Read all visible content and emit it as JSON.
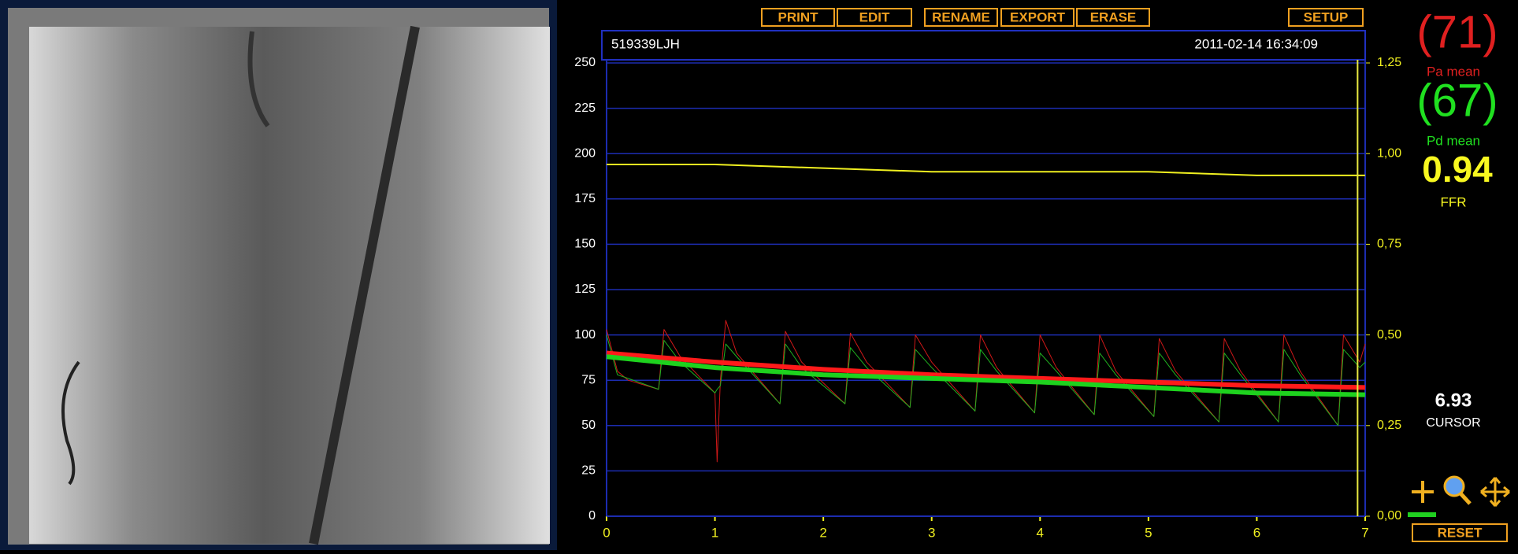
{
  "toolbar": {
    "buttons": [
      "PRINT",
      "EDIT",
      "RENAME",
      "EXPORT",
      "ERASE",
      "SETUP"
    ]
  },
  "header": {
    "patient_id": "519339LJH",
    "timestamp": "2011-02-14 16:34:09"
  },
  "readouts": {
    "pa_value": "(71)",
    "pa_label": "Pa mean",
    "pd_value": "(67)",
    "pd_label": "Pd mean",
    "ffr_value": "0.94",
    "ffr_label": "FFR",
    "cursor_label": "CURSOR",
    "reset": "RESET"
  },
  "chart_data": {
    "type": "line",
    "xlim": [
      0,
      7
    ],
    "xticks": [
      0,
      1,
      2,
      3,
      4,
      5,
      6,
      7
    ],
    "ylim": [
      0,
      250
    ],
    "yticks": [
      0,
      25,
      50,
      75,
      100,
      125,
      150,
      175,
      200,
      225,
      250
    ],
    "y2lim": [
      0,
      1.25
    ],
    "y2ticks": [
      {
        "value": 0,
        "label": "0,00"
      },
      {
        "value": 0.25,
        "label": "0,25"
      },
      {
        "value": 0.5,
        "label": "0,50"
      },
      {
        "value": 0.75,
        "label": "0,75"
      },
      {
        "value": 1,
        "label": "1,00"
      },
      {
        "value": 1.25,
        "label": "1,25"
      }
    ],
    "grid": true,
    "cursor": 6.93,
    "cursor_color": "#e8e840",
    "series": [
      {
        "color": "#d01818",
        "width": 1,
        "x": [
          0,
          0.1,
          0.2,
          0.48,
          0.53,
          0.68,
          1.0,
          1.02,
          1.05,
          1.1,
          1.2,
          1.6,
          1.65,
          1.8,
          2.2,
          2.25,
          2.4,
          2.8,
          2.85,
          3.0,
          3.4,
          3.45,
          3.6,
          3.95,
          4.0,
          4.15,
          4.5,
          4.55,
          4.7,
          5.05,
          5.1,
          5.25,
          5.65,
          5.7,
          5.85,
          6.2,
          6.25,
          6.4,
          6.75,
          6.8,
          6.95,
          7.0
        ],
        "values": [
          103,
          80,
          75,
          70,
          103,
          88,
          68,
          30,
          75,
          108,
          90,
          62,
          102,
          85,
          62,
          101,
          85,
          60,
          100,
          85,
          58,
          100,
          82,
          57,
          100,
          82,
          56,
          100,
          80,
          55,
          98,
          80,
          52,
          98,
          80,
          52,
          100,
          80,
          50,
          100,
          85,
          95
        ]
      },
      {
        "color": "#20b020",
        "width": 1,
        "x": [
          0,
          0.1,
          0.2,
          0.48,
          0.53,
          0.68,
          1.0,
          1.02,
          1.05,
          1.1,
          1.2,
          1.6,
          1.65,
          1.8,
          2.2,
          2.25,
          2.4,
          2.8,
          2.85,
          3.0,
          3.4,
          3.45,
          3.6,
          3.95,
          4.0,
          4.15,
          4.5,
          4.55,
          4.7,
          5.05,
          5.1,
          5.25,
          5.65,
          5.7,
          5.85,
          6.2,
          6.25,
          6.4,
          6.75,
          6.8,
          6.95,
          7.0
        ],
        "values": [
          100,
          78,
          76,
          70,
          97,
          85,
          68,
          70,
          72,
          95,
          88,
          62,
          95,
          82,
          62,
          93,
          82,
          60,
          92,
          82,
          58,
          92,
          80,
          57,
          90,
          80,
          56,
          90,
          78,
          55,
          90,
          78,
          52,
          90,
          78,
          52,
          92,
          78,
          50,
          92,
          82,
          85
        ]
      },
      {
        "color": "#ff1a1a",
        "width": 6,
        "x": [
          0,
          1,
          2,
          3,
          4,
          5,
          6,
          7
        ],
        "values": [
          90,
          85,
          81,
          78,
          76,
          74,
          72,
          71
        ]
      },
      {
        "color": "#1ed21e",
        "width": 6,
        "x": [
          0,
          1,
          2,
          3,
          4,
          5,
          6,
          7
        ],
        "values": [
          88,
          82,
          78,
          76,
          74,
          71,
          68,
          67
        ]
      },
      {
        "color": "#f0f020",
        "width": 2,
        "axis": "y2",
        "x": [
          0,
          1,
          2,
          3,
          4,
          5,
          6,
          7
        ],
        "values": [
          0.97,
          0.97,
          0.96,
          0.95,
          0.95,
          0.95,
          0.94,
          0.94
        ]
      }
    ]
  }
}
